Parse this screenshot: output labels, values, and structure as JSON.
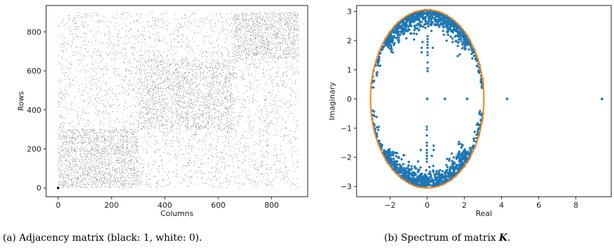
{
  "chart_data": [
    {
      "type": "scatter",
      "xlabel": "Columns",
      "ylabel": "Rows",
      "xlim": [
        -45,
        935
      ],
      "ylim": [
        -45,
        935
      ],
      "xticks": [
        0,
        200,
        400,
        600,
        800
      ],
      "yticks": [
        0,
        200,
        400,
        600,
        800
      ],
      "grid": false,
      "marker_color": "#000000",
      "caption": "(a) Adjacency matrix (black: 1, white: 0).",
      "blocks": [
        {
          "rows": [
            0,
            300
          ],
          "cols": [
            0,
            300
          ],
          "density": "high"
        },
        {
          "rows": [
            300,
            660
          ],
          "cols": [
            300,
            660
          ],
          "density": "medium"
        },
        {
          "rows": [
            660,
            900
          ],
          "cols": [
            660,
            900
          ],
          "density": "high"
        }
      ],
      "background_density": "low",
      "highlighted_point": {
        "x": 0,
        "y": 0
      }
    },
    {
      "type": "scatter",
      "xlabel": "Real",
      "ylabel": "Imaginary",
      "xlim": [
        -3.8,
        9.9
      ],
      "ylim": [
        -3.35,
        3.2
      ],
      "xticks": [
        -2,
        0,
        2,
        4,
        6,
        8
      ],
      "yticks": [
        -3,
        -2,
        -1,
        0,
        1,
        2,
        3
      ],
      "grid": false,
      "point_color": "#1f77b4",
      "ellipse_color": "#ff7f0e",
      "ellipse": {
        "center": [
          0,
          0
        ],
        "semi_axis_real": 3.05,
        "semi_axis_imag": 3.05
      },
      "outlier_eigenvalues": [
        {
          "x": 0.0,
          "y": 0.0
        },
        {
          "x": 0.95,
          "y": 0.0
        },
        {
          "x": 2.15,
          "y": 0.0
        },
        {
          "x": 4.3,
          "y": 0.0
        },
        {
          "x": 9.4,
          "y": 0.0
        }
      ],
      "caption_prefix": "(b) Spectrum of matrix ",
      "caption_symbol": "K",
      "caption_suffix": "."
    }
  ]
}
